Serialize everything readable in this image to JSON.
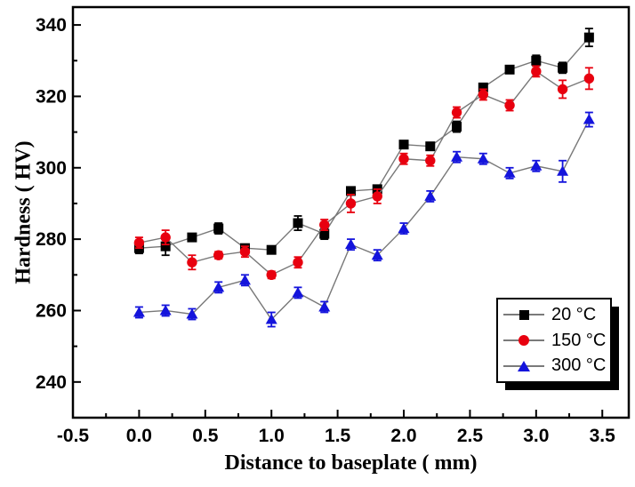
{
  "chart_data": {
    "type": "line",
    "title": "",
    "xlabel": "Distance to baseplate ( mm)",
    "ylabel": "Hardness ( HV)",
    "xlim": [
      -0.5,
      3.7
    ],
    "ylim": [
      230,
      345
    ],
    "x_tick_labels": [
      "-0.5",
      "0.0",
      "0.5",
      "1.0",
      "1.5",
      "2.0",
      "2.5",
      "3.0",
      "3.5"
    ],
    "y_tick_labels": [
      "240",
      "260",
      "280",
      "300",
      "320",
      "340"
    ],
    "x_minor_tick_step": 0.25,
    "y_minor_tick_step": 10,
    "grid": false,
    "legend_position": "bottom-right",
    "line_color": "#787878",
    "x": [
      0.0,
      0.2,
      0.4,
      0.6,
      0.8,
      1.0,
      1.2,
      1.4,
      1.6,
      1.8,
      2.0,
      2.2,
      2.4,
      2.6,
      2.8,
      3.0,
      3.2,
      3.4
    ],
    "series": [
      {
        "name": "20 °C",
        "marker": "square",
        "color": "#000000",
        "values": [
          277.5,
          278,
          280.5,
          283,
          277.5,
          277,
          284.5,
          281.5,
          293.5,
          294,
          306.5,
          306,
          311.5,
          322.5,
          327.5,
          330,
          328,
          336.5
        ],
        "errors": [
          1.5,
          2.5,
          1,
          1.5,
          1,
          1,
          2,
          1.5,
          1,
          1,
          1,
          1,
          1.5,
          1,
          1,
          1.5,
          1.5,
          2.5
        ]
      },
      {
        "name": "150 °C",
        "marker": "circle",
        "color": "#e8000f",
        "values": [
          279,
          280.5,
          273.5,
          275.5,
          276.5,
          270,
          273.5,
          284,
          290,
          292,
          302.5,
          302,
          315.5,
          320.5,
          317.5,
          327,
          322,
          325
        ],
        "errors": [
          1.5,
          2,
          2,
          1,
          1.5,
          1,
          1.5,
          1.5,
          2.5,
          2,
          1.5,
          1.5,
          1.5,
          1.5,
          1.5,
          1.5,
          2.5,
          3
        ]
      },
      {
        "name": "300 °C",
        "marker": "triangle",
        "color": "#1414dc",
        "values": [
          259.5,
          260,
          259,
          266.5,
          268.5,
          257.5,
          265,
          261,
          278.5,
          275.5,
          283,
          292,
          303,
          302.5,
          298.5,
          300.5,
          299,
          313.5
        ],
        "errors": [
          1.5,
          1.5,
          1.5,
          1.5,
          1.5,
          2,
          1.5,
          1.5,
          1.5,
          1.5,
          1.5,
          1.5,
          1.5,
          1.5,
          1.5,
          1.5,
          3,
          2
        ]
      }
    ]
  }
}
